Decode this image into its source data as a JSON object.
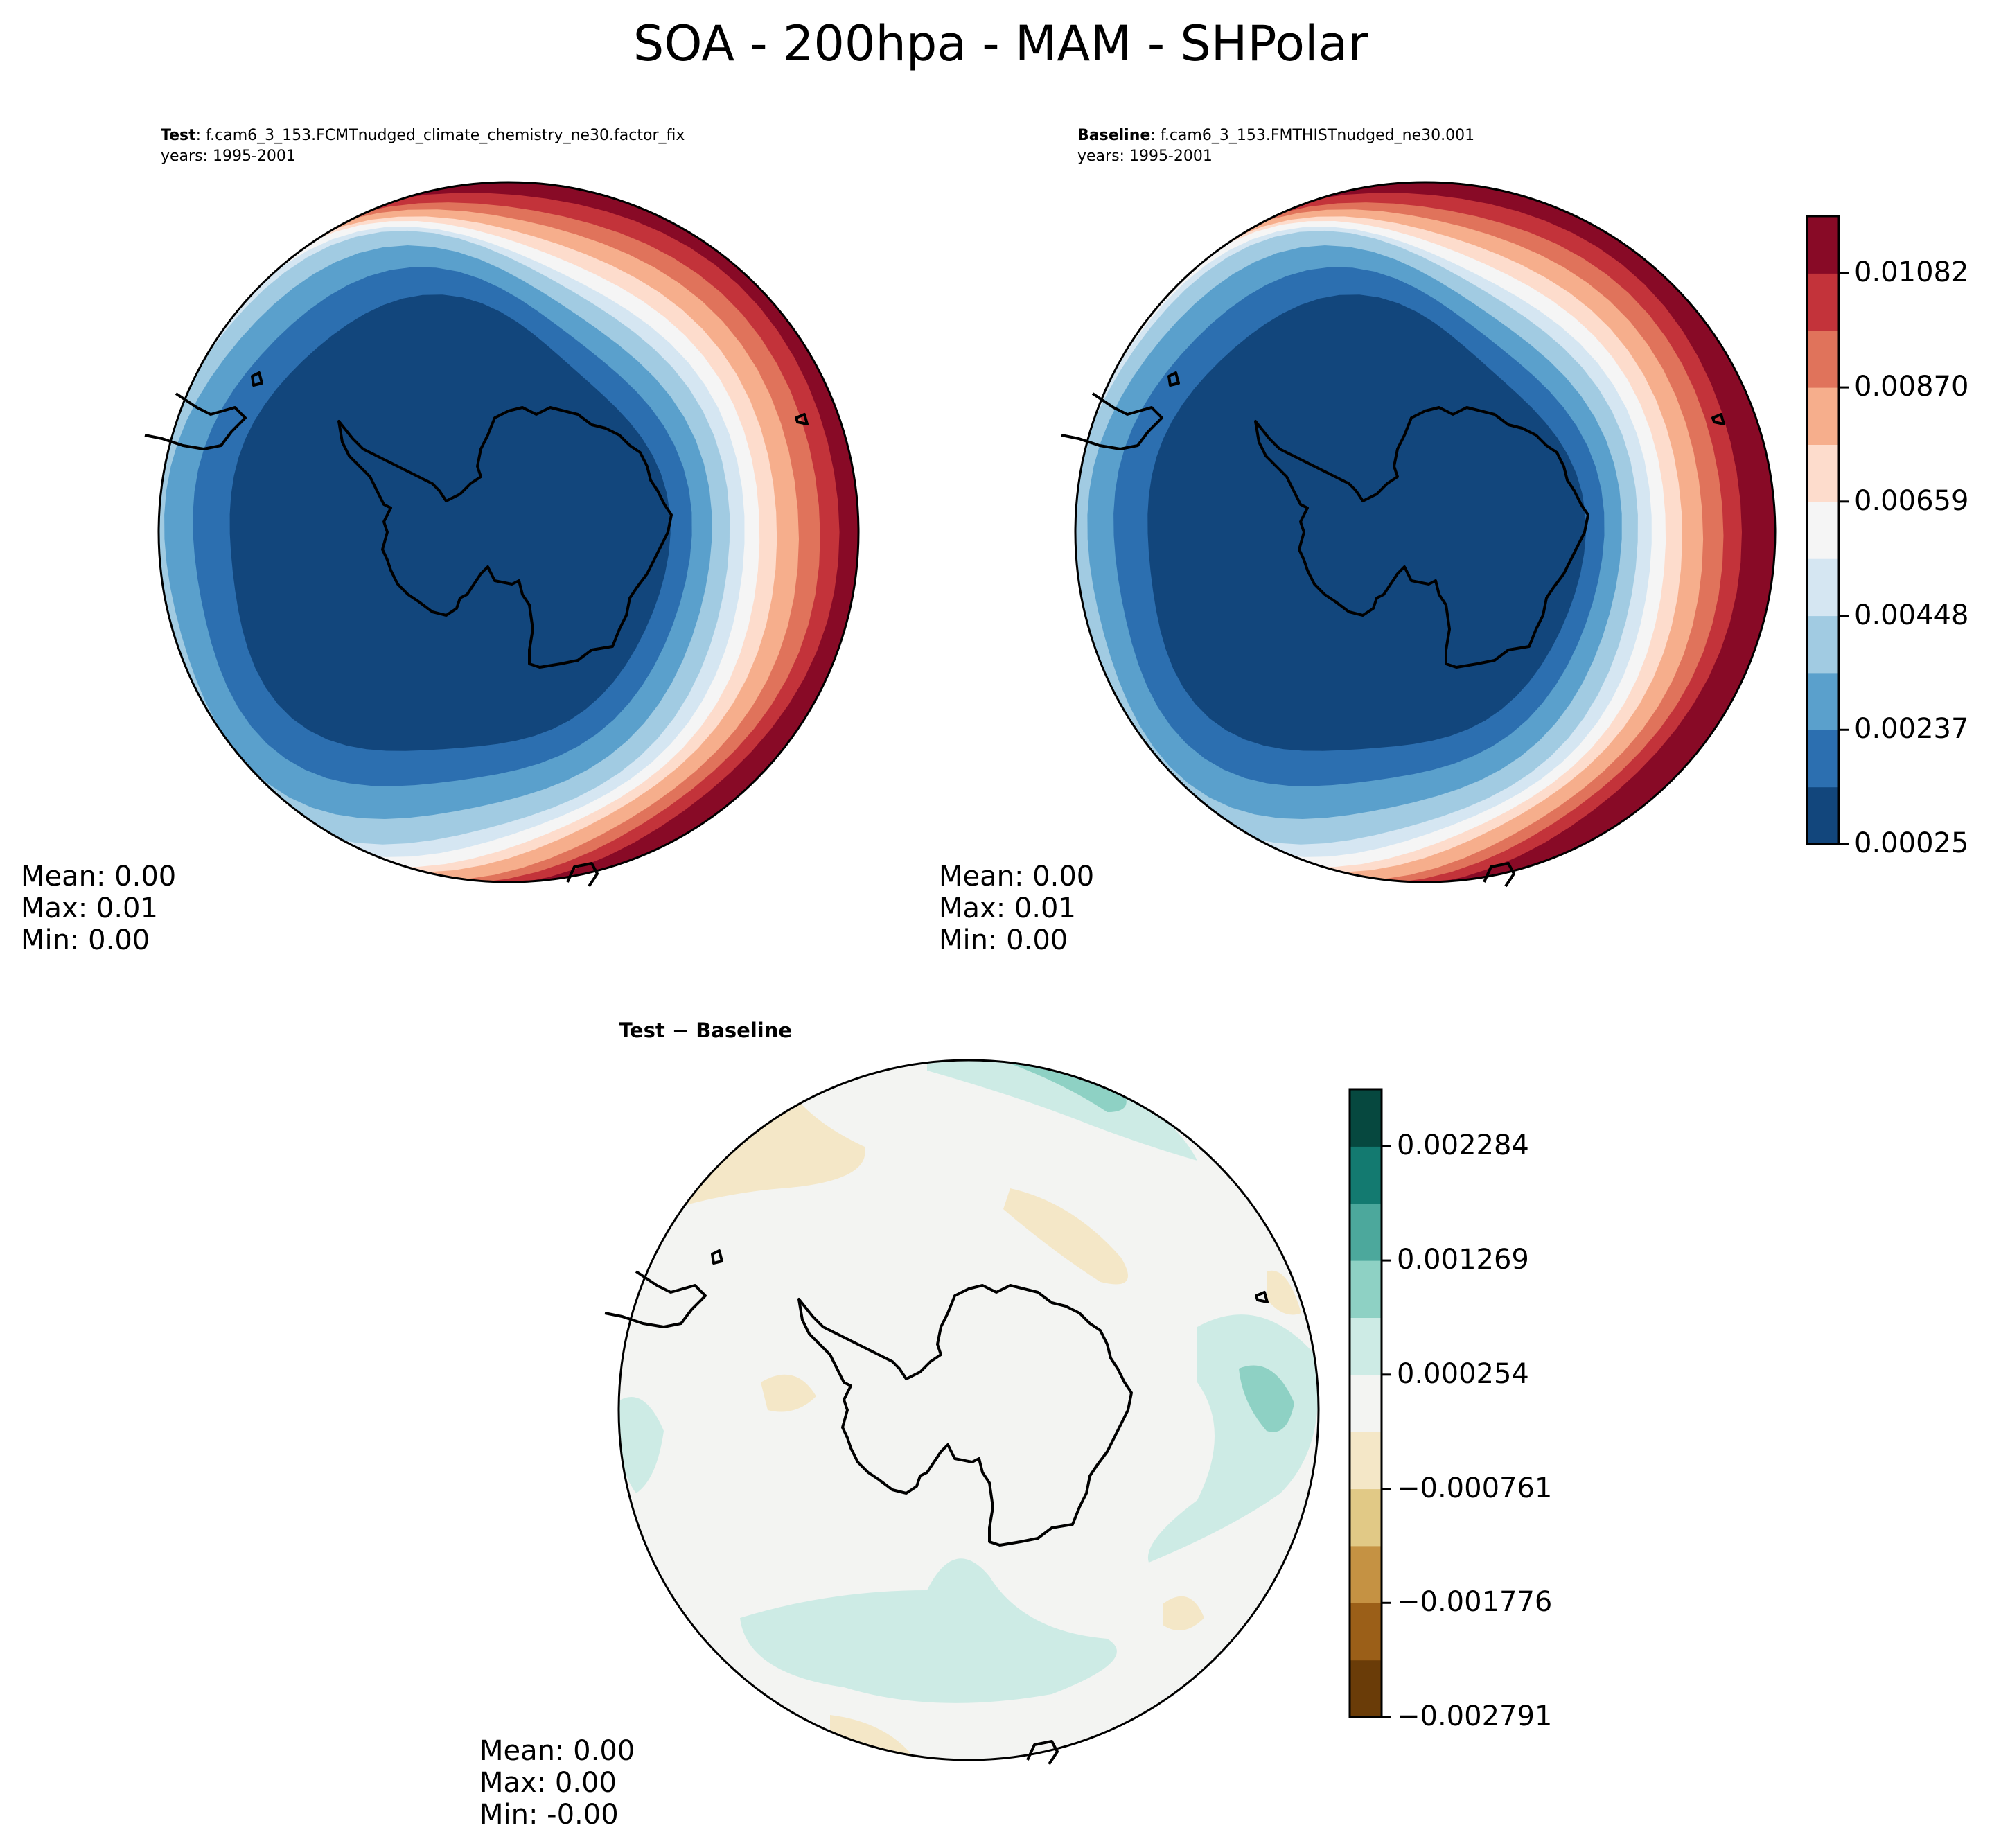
{
  "figure": {
    "title": "SOA - 200hpa - MAM - SHPolar"
  },
  "panels": {
    "test": {
      "label": "Test",
      "case": ": f.cam6_3_153.FCMTnudged_climate_chemistry_ne30.factor_fix",
      "years": "years: 1995-2001",
      "stats": {
        "mean": "Mean:  0.00",
        "max": "Max:  0.01",
        "min": "Min:  0.00"
      }
    },
    "baseline": {
      "label": "Baseline",
      "case": ": f.cam6_3_153.FMTHISTnudged_ne30.001",
      "years": "years: 1995-2001",
      "stats": {
        "mean": "Mean:  0.00",
        "max": "Max:  0.01",
        "min": "Min:  0.00"
      }
    },
    "diff": {
      "title": "Test − Baseline",
      "stats": {
        "mean": "Mean:  0.00",
        "max": "Max:  0.00",
        "min": "Min: -0.00"
      }
    }
  },
  "chart_data": [
    {
      "type": "heatmap",
      "name": "Test",
      "projection": "south-polar-stereographic",
      "colormap": "RdBu_r",
      "levels": [
        0.00025,
        0.00131,
        0.00237,
        0.00342,
        0.00448,
        0.00553,
        0.00659,
        0.00765,
        0.0087,
        0.00976,
        0.01082,
        0.01187
      ],
      "colorbar_ticks": [
        "0.00025",
        "0.00237",
        "0.00448",
        "0.00659",
        "0.00870",
        "0.01082"
      ],
      "mean": 0.0,
      "max": 0.01,
      "min": 0.0
    },
    {
      "type": "heatmap",
      "name": "Baseline",
      "projection": "south-polar-stereographic",
      "colormap": "RdBu_r",
      "levels": [
        0.00025,
        0.00131,
        0.00237,
        0.00342,
        0.00448,
        0.00553,
        0.00659,
        0.00765,
        0.0087,
        0.00976,
        0.01082,
        0.01187
      ],
      "colorbar_ticks": [
        "0.00025",
        "0.00237",
        "0.00448",
        "0.00659",
        "0.00870",
        "0.01082"
      ],
      "mean": 0.0,
      "max": 0.01,
      "min": 0.0
    },
    {
      "type": "heatmap",
      "name": "Test - Baseline",
      "projection": "south-polar-stereographic",
      "colormap": "BrBG",
      "levels": [
        -0.002791,
        -0.002283,
        -0.001776,
        -0.001268,
        -0.000761,
        -0.000253,
        0.000254,
        0.000761,
        0.001269,
        0.001776,
        0.002284,
        0.002791
      ],
      "colorbar_ticks": [
        "−0.002791",
        "−0.001776",
        "−0.000761",
        "0.000254",
        "0.001269",
        "0.002284"
      ],
      "mean": 0.0,
      "max": 0.0,
      "min": -0.0
    }
  ],
  "colors": {
    "rdbu": [
      "#12467c",
      "#2c6fb0",
      "#5aa0cc",
      "#a1cbe2",
      "#d5e6f2",
      "#f5f5f5",
      "#fddccc",
      "#f6ae8c",
      "#e0735b",
      "#c3333a",
      "#880a26"
    ],
    "brbg": [
      "#6a3c08",
      "#9b5f18",
      "#c59243",
      "#e1c986",
      "#f4e7c7",
      "#f3f4f2",
      "#cdebe5",
      "#8ed1c4",
      "#4ca89c",
      "#137a70",
      "#06483f"
    ]
  }
}
